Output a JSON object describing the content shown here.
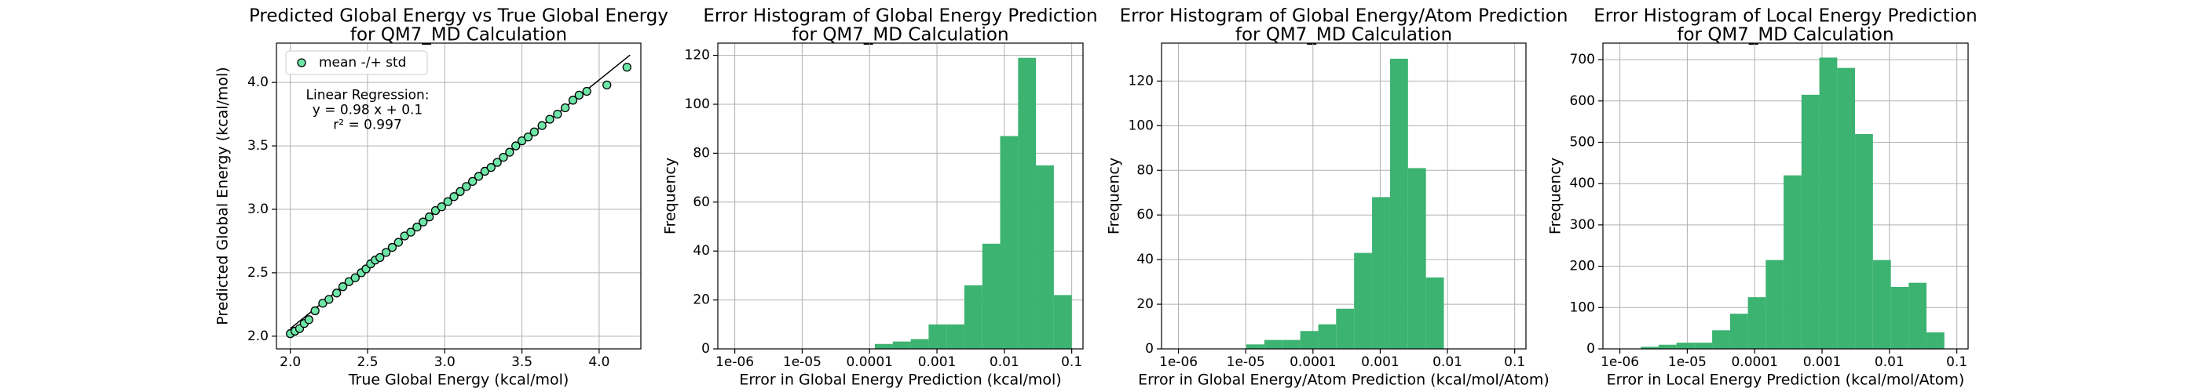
{
  "chart_data": [
    {
      "type": "scatter",
      "title": [
        "Predicted Global Energy vs True Global Energy",
        "for QM7_MD Calculation"
      ],
      "xlabel": "True Global Energy (kcal/mol)",
      "ylabel": "Predicted Global Energy (kcal/mol)",
      "legend_label": "mean -/+ std",
      "legend_loc": "upper left",
      "annotation": [
        "Linear Regression:",
        "y = 0.98 x + 0.1",
        "r² = 0.997"
      ],
      "color": "#6ee6a8",
      "edgecolor": "#000000",
      "grid": true,
      "x": [
        2.0,
        2.03,
        2.06,
        2.09,
        2.12,
        2.16,
        2.21,
        2.25,
        2.3,
        2.34,
        2.38,
        2.42,
        2.46,
        2.49,
        2.52,
        2.55,
        2.58,
        2.62,
        2.66,
        2.7,
        2.74,
        2.78,
        2.82,
        2.86,
        2.9,
        2.94,
        2.98,
        3.02,
        3.06,
        3.1,
        3.14,
        3.18,
        3.22,
        3.26,
        3.3,
        3.34,
        3.38,
        3.42,
        3.46,
        3.5,
        3.54,
        3.58,
        3.63,
        3.68,
        3.73,
        3.78,
        3.83,
        3.87,
        3.92,
        4.05,
        4.18
      ],
      "values": [
        2.02,
        2.04,
        2.06,
        2.1,
        2.13,
        2.2,
        2.26,
        2.29,
        2.34,
        2.39,
        2.43,
        2.46,
        2.5,
        2.53,
        2.57,
        2.6,
        2.62,
        2.66,
        2.7,
        2.74,
        2.79,
        2.82,
        2.86,
        2.9,
        2.94,
        2.99,
        3.02,
        3.06,
        3.1,
        3.14,
        3.18,
        3.22,
        3.26,
        3.3,
        3.33,
        3.37,
        3.41,
        3.45,
        3.5,
        3.54,
        3.57,
        3.61,
        3.66,
        3.71,
        3.75,
        3.8,
        3.86,
        3.9,
        3.93,
        3.98,
        4.12
      ],
      "fit_line": {
        "x": [
          2.0,
          4.2
        ],
        "values": [
          2.06,
          4.216
        ],
        "color": "#000000"
      },
      "xlim": [
        1.91,
        4.27
      ],
      "ylim": [
        1.9,
        4.31
      ],
      "xticks": [
        {
          "value": 2,
          "label": "2.0"
        },
        2.5,
        {
          "value": 3,
          "label": "3.0"
        },
        3.5,
        {
          "value": 4,
          "label": "4.0"
        }
      ],
      "yticks": [
        {
          "value": 2,
          "label": "2.0"
        },
        2.5,
        {
          "value": 3,
          "label": "3.0"
        },
        3.5,
        {
          "value": 4,
          "label": "4.0"
        }
      ]
    },
    {
      "type": "histogram",
      "xscale": "log",
      "color": "#3cb371",
      "grid": true,
      "title": [
        "Error Histogram of Global Energy Prediction",
        "for QM7_MD Calculation"
      ],
      "xlabel": "Error in Global Energy Prediction (kcal/mol)",
      "ylabel": "Frequency",
      "bins": [
        0.00012,
        0.000221,
        0.000408,
        0.000752,
        0.001387,
        0.00255,
        0.00471,
        0.00867,
        0.016,
        0.0294,
        0.0543,
        0.1
      ],
      "values": [
        2,
        3,
        4,
        10,
        10,
        26,
        43,
        87,
        119,
        75,
        22
      ],
      "xlim": [
        5.6e-07,
        0.147
      ],
      "ylim": [
        0,
        125
      ],
      "xticks": [
        {
          "value": 1e-06,
          "label": "1e-06"
        },
        {
          "value": 1e-05,
          "label": "1e-05"
        },
        0.0001,
        0.001,
        0.01,
        0.1
      ],
      "yticks": [
        0,
        20,
        40,
        60,
        80,
        100,
        120
      ]
    },
    {
      "type": "histogram",
      "xscale": "log",
      "color": "#3cb371",
      "grid": true,
      "title": [
        "Error Histogram of Global Energy/Atom Prediction",
        "for QM7_MD Calculation"
      ],
      "xlabel": "Error in Global Energy/Atom Prediction (kcal/mol/Atom)",
      "ylabel": "Frequency",
      "bins": [
        1.02e-05,
        1.89e-05,
        3.5e-05,
        6.47e-05,
        0.00012,
        0.000221,
        0.000409,
        0.000757,
        0.0014,
        0.00259,
        0.00479,
        0.00885
      ],
      "values": [
        2,
        4,
        4,
        8,
        11,
        18,
        43,
        68,
        130,
        81,
        32
      ],
      "xlim": [
        5.6e-07,
        0.147
      ],
      "ylim": [
        0,
        137
      ],
      "xticks": [
        {
          "value": 1e-06,
          "label": "1e-06"
        },
        {
          "value": 1e-05,
          "label": "1e-05"
        },
        0.0001,
        0.001,
        0.01,
        0.1
      ],
      "yticks": [
        0,
        20,
        40,
        60,
        80,
        100,
        120
      ]
    },
    {
      "type": "histogram",
      "xscale": "log",
      "color": "#3cb371",
      "grid": true,
      "title": [
        "Error Histogram of Local Energy Prediction",
        "for QM7_MD Calculation"
      ],
      "xlabel": "Error in Local Energy Prediction (kcal/mol/Atom)",
      "ylabel": "Frequency",
      "bins": [
        2.04e-06,
        3.76e-06,
        6.92e-06,
        1.27e-05,
        2.34e-05,
        4.32e-05,
        7.94e-05,
        0.000146,
        0.000269,
        0.000495,
        0.000912,
        0.00168,
        0.00309,
        0.00569,
        0.0105,
        0.0193,
        0.0355,
        0.0653
      ],
      "values": [
        5,
        10,
        15,
        15,
        45,
        85,
        125,
        215,
        420,
        615,
        705,
        680,
        520,
        215,
        150,
        160,
        40
      ],
      "xlim": [
        5.6e-07,
        0.147
      ],
      "ylim": [
        0,
        740
      ],
      "xticks": [
        {
          "value": 1e-06,
          "label": "1e-06"
        },
        {
          "value": 1e-05,
          "label": "1e-05"
        },
        0.0001,
        0.001,
        0.01,
        0.1
      ],
      "yticks": [
        0,
        100,
        200,
        300,
        400,
        500,
        600,
        700
      ]
    }
  ]
}
